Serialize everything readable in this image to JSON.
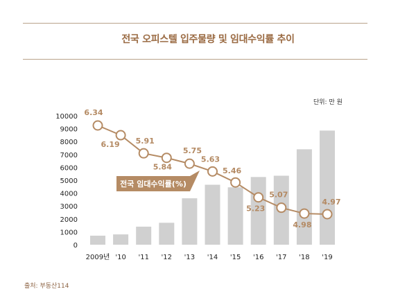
{
  "title": "전국 오피스텔 입주물량 및 임대수익률 추이",
  "unit_label": "단위: 만 원",
  "source": "출처: 부동산114",
  "colors": {
    "bar": "#d0d0d0",
    "line": "#b58b64",
    "legend_fill": "#b58b64",
    "title": "#9a6a42",
    "rule": "#b9a38a"
  },
  "chart_data": {
    "type": "bar",
    "categories": [
      "2009년",
      "'10",
      "'11",
      "'12",
      "'13",
      "'14",
      "'15",
      "'16",
      "'17",
      "'18",
      "'19"
    ],
    "ylim": [
      0,
      10000
    ],
    "yticks": [
      0,
      1000,
      2000,
      3000,
      4000,
      5000,
      6000,
      7000,
      8000,
      9000,
      10000
    ],
    "series": [
      {
        "type": "bar",
        "values": [
          700,
          800,
          1400,
          1700,
          3600,
          4650,
          4450,
          5250,
          5350,
          7400,
          8850
        ]
      },
      {
        "type": "line",
        "name": "전국 임대수익률(%)",
        "values": [
          6.34,
          6.19,
          5.91,
          5.84,
          5.75,
          5.63,
          5.46,
          5.23,
          5.07,
          4.98,
          4.97
        ],
        "labels": [
          "6.34",
          "6.19",
          "5.91",
          "5.84",
          "5.75",
          "5.63",
          "5.46",
          "5.23",
          "5.07",
          "4.98",
          "4.97"
        ]
      }
    ],
    "legend": "center-left"
  }
}
